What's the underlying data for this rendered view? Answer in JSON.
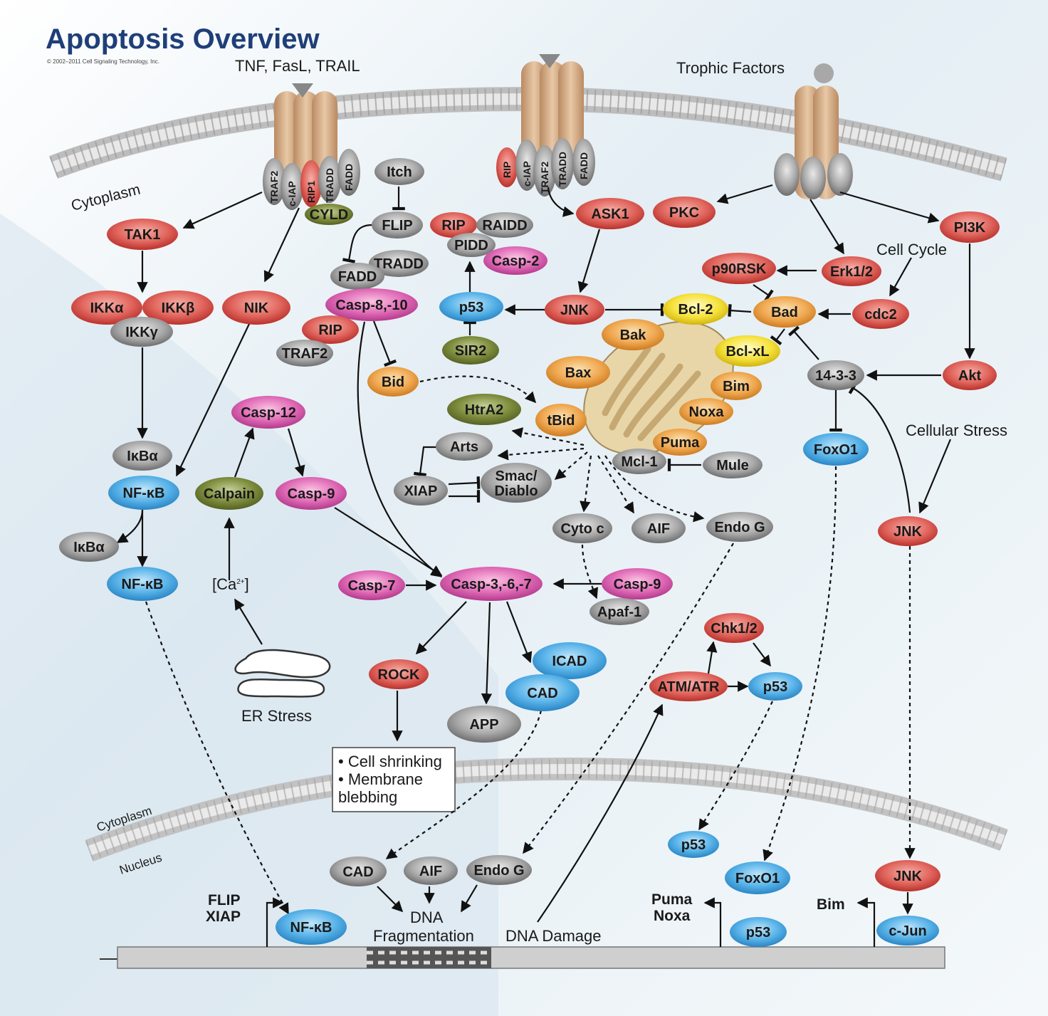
{
  "title": "Apoptosis Overview",
  "copyright": "© 2002–2011 Cell Signaling Technology, Inc.",
  "labels": {
    "tnf": "TNF, FasL, TRAIL",
    "trophic": "Trophic Factors",
    "cytoplasm_top": "Cytoplasm",
    "cell_cycle": "Cell Cycle",
    "cellular_stress": "Cellular Stress",
    "er_stress": "ER Stress",
    "ca": "[Ca",
    "ca_sup": "2+",
    "ca_close": "]",
    "cytoplasm_bottom": "Cytoplasm",
    "nucleus": "Nucleus",
    "dna_frag_1": "DNA",
    "dna_frag_2": "Fragmentation",
    "dna_damage": "DNA Damage",
    "flip_out": "FLIP",
    "xiap_out": "XIAP",
    "puma_out": "Puma",
    "noxa_out": "Noxa",
    "bim_out": "Bim",
    "shrink_1": "• Cell shrinking",
    "shrink_2": "• Membrane",
    "shrink_3": "  blebbing"
  },
  "receptor_labels": {
    "r1": [
      "TRAF2",
      "c-IAP",
      "RIP1",
      "TRADD",
      "FADD"
    ],
    "r2": [
      "RIP",
      "c-IAP",
      "TRAF2",
      "TRADD",
      "FADD"
    ]
  },
  "nodes": {
    "cyld": "CYLD",
    "itch": "Itch",
    "flip": "FLIP",
    "tradd": "TRADD",
    "fadd": "FADD",
    "casp810": "Casp-8,-10",
    "rip_a": "RIP",
    "traf2": "TRAF2",
    "bid": "Bid",
    "tak1": "TAK1",
    "ikka": "IKKα",
    "ikkb": "IKKβ",
    "ikkg": "IKKγ",
    "nik": "NIK",
    "ikba1": "IκBα",
    "nfkb1": "NF-κB",
    "ikba2": "IκBα",
    "nfkb2": "NF-κB",
    "casp12": "Casp-12",
    "calpain": "Calpain",
    "casp9a": "Casp-9",
    "rip_b": "RIP",
    "raidd": "RAIDD",
    "pidd": "PIDD",
    "casp2": "Casp-2",
    "p53a": "p53",
    "sir2": "SIR2",
    "ask1": "ASK1",
    "jnk1": "JNK",
    "pkc": "PKC",
    "pi3k": "PI3K",
    "p90rsk": "p90RSK",
    "erk": "Erk1/2",
    "bcl2": "Bcl-2",
    "bad": "Bad",
    "cdc2": "cdc2",
    "bak": "Bak",
    "bclxl": "Bcl-xL",
    "bax": "Bax",
    "bim": "Bim",
    "noxa": "Noxa",
    "puma": "Puma",
    "mcl1": "Mcl-1",
    "mule": "Mule",
    "tbid": "tBid",
    "htra2": "HtrA2",
    "arts": "Arts",
    "xiap": "XIAP",
    "smac1": "Smac/",
    "smac2": "Diablo",
    "cytoc": "Cyto c",
    "aif1": "AIF",
    "endog1": "Endo G",
    "b1433": "14-3-3",
    "akt": "Akt",
    "foxo1a": "FoxO1",
    "jnk2": "JNK",
    "casp7": "Casp-7",
    "casp367": "Casp-3,-6,-7",
    "casp9b": "Casp-9",
    "apaf1": "Apaf-1",
    "rock": "ROCK",
    "app": "APP",
    "icad": "ICAD",
    "cad1": "CAD",
    "chk": "Chk1/2",
    "atm": "ATM/ATR",
    "p53b": "p53",
    "p53c": "p53",
    "foxo1b": "FoxO1",
    "jnk3": "JNK",
    "cjun": "c-Jun",
    "p53d": "p53",
    "nfkb3": "NF-κB",
    "cad2": "CAD",
    "aif2": "AIF",
    "endog2": "Endo G"
  }
}
